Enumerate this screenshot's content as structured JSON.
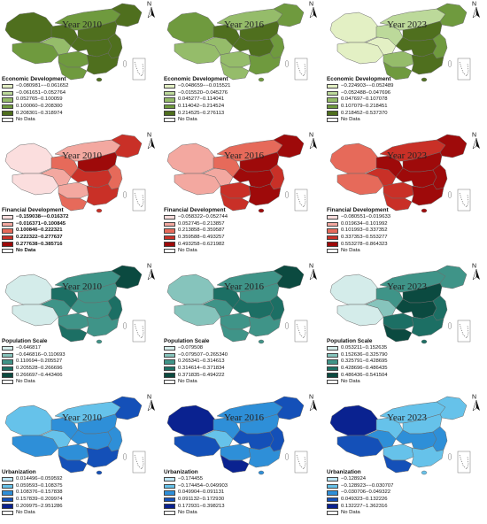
{
  "panels": [
    {
      "row": "Economic Development",
      "year_label": "Year 2010",
      "legend_title": "Economic Development",
      "classes": [
        {
          "label": "−0.080981−−0.061652",
          "color": "#e3f0c4"
        },
        {
          "label": "−0.061651−0.052764",
          "color": "#bcd99a"
        },
        {
          "label": "0.052765−0.100059",
          "color": "#95bc6a"
        },
        {
          "label": "0.100060−0.208300",
          "color": "#6f9a3e"
        },
        {
          "label": "0.208301−0.318974",
          "color": "#4f6f1e"
        }
      ],
      "nodata_label": "No Data",
      "region_classes": [
        4,
        3,
        2,
        4,
        3,
        4,
        3,
        4,
        4,
        4,
        3,
        4
      ]
    },
    {
      "row": "Economic Development",
      "year_label": "Year 2016",
      "legend_title": "Economic Development",
      "classes": [
        {
          "label": "−0.048659−−0.015521",
          "color": "#e3f0c4"
        },
        {
          "label": "−0.015520−0.045276",
          "color": "#bcd99a"
        },
        {
          "label": "0.045277−0.114041",
          "color": "#95bc6a"
        },
        {
          "label": "0.114042−0.214524",
          "color": "#6f9a3e"
        },
        {
          "label": "0.214525−0.276113",
          "color": "#4f6f1e"
        }
      ],
      "nodata_label": "No Data",
      "region_classes": [
        3,
        2,
        2,
        4,
        2,
        3,
        2,
        4,
        4,
        3,
        2,
        3
      ]
    },
    {
      "row": "Economic Development",
      "year_label": "Year 2023",
      "legend_title": "Economic Development",
      "classes": [
        {
          "label": "−0.224903−−0.052489",
          "color": "#e3f0c4"
        },
        {
          "label": "−0.052488−0.047696",
          "color": "#bcd99a"
        },
        {
          "label": "0.047697−0.107078",
          "color": "#95bc6a"
        },
        {
          "label": "0.107079−0.218451",
          "color": "#6f9a3e"
        },
        {
          "label": "0.218452−0.537370",
          "color": "#4f6f1e"
        }
      ],
      "nodata_label": "No Data",
      "region_classes": [
        0,
        0,
        0,
        1,
        1,
        3,
        2,
        4,
        4,
        3,
        3,
        4
      ]
    },
    {
      "row": "Financial Development",
      "year_label": "Year 2010",
      "legend_title": "Financial Development",
      "legend_bold": true,
      "classes": [
        {
          "label": "−0.159038−−0.016372",
          "color": "#fbdede"
        },
        {
          "label": "−0.016371−0.100845",
          "color": "#f3a8a0"
        },
        {
          "label": "0.100846−0.222321",
          "color": "#e66a5a"
        },
        {
          "label": "0.222322−0.277637",
          "color": "#c93027"
        },
        {
          "label": "0.277638−0.385716",
          "color": "#9e0a0a"
        }
      ],
      "nodata_label": "No Data",
      "region_classes": [
        0,
        0,
        1,
        2,
        1,
        3,
        1,
        4,
        3,
        2,
        2,
        3
      ]
    },
    {
      "row": "Financial Development",
      "year_label": "Year 2016",
      "legend_title": "Financial Development",
      "classes": [
        {
          "label": "−0.058322−0.052744",
          "color": "#fbdede"
        },
        {
          "label": "0.052745−0.213857",
          "color": "#f3a8a0"
        },
        {
          "label": "0.213858−0.359587",
          "color": "#e66a5a"
        },
        {
          "label": "0.359588−0.493257",
          "color": "#c93027"
        },
        {
          "label": "0.493258−0.621982",
          "color": "#9e0a0a"
        }
      ],
      "nodata_label": "No Data",
      "region_classes": [
        1,
        1,
        1,
        2,
        2,
        4,
        3,
        4,
        4,
        3,
        3,
        4
      ]
    },
    {
      "row": "Financial Development",
      "year_label": "Year 2023",
      "legend_title": "Financial Development",
      "classes": [
        {
          "label": "−0.080551−0.019633",
          "color": "#fbdede"
        },
        {
          "label": "0.019634−0.101992",
          "color": "#f3a8a0"
        },
        {
          "label": "0.101993−0.337352",
          "color": "#e66a5a"
        },
        {
          "label": "0.337353−0.553277",
          "color": "#c93027"
        },
        {
          "label": "0.553278−0.864323",
          "color": "#9e0a0a"
        }
      ],
      "nodata_label": "No Data",
      "region_classes": [
        2,
        2,
        3,
        4,
        3,
        4,
        3,
        4,
        4,
        4,
        3,
        4
      ]
    },
    {
      "row": "Population Scale",
      "year_label": "Year 2010",
      "legend_title": "Population Scale",
      "classes": [
        {
          "label": "−0.646817",
          "color": "#d4ecea"
        },
        {
          "label": "−0.646816−0.110693",
          "color": "#86c4bc"
        },
        {
          "label": "0.110694−0.205527",
          "color": "#3f9488"
        },
        {
          "label": "0.205528−0.266696",
          "color": "#1c6f64"
        },
        {
          "label": "0.266697−0.443406",
          "color": "#0b4a40"
        }
      ],
      "nodata_label": "No Data",
      "region_classes": [
        0,
        0,
        2,
        3,
        2,
        4,
        2,
        2,
        2,
        3,
        3,
        2
      ]
    },
    {
      "row": "Population Scale",
      "year_label": "Year 2016",
      "legend_title": "Population Scale",
      "classes": [
        {
          "label": "−0.079508",
          "color": "#d4ecea"
        },
        {
          "label": "−0.079507−0.265340",
          "color": "#86c4bc"
        },
        {
          "label": "0.265341−0.314613",
          "color": "#3f9488"
        },
        {
          "label": "0.314614−0.371834",
          "color": "#1c6f64"
        },
        {
          "label": "0.371835−0.494222",
          "color": "#0b4a40"
        }
      ],
      "nodata_label": "No Data",
      "region_classes": [
        1,
        1,
        2,
        3,
        2,
        4,
        2,
        2,
        3,
        3,
        2,
        2
      ]
    },
    {
      "row": "Population Scale",
      "year_label": "Year 2023",
      "legend_title": "Population Scale",
      "classes": [
        {
          "label": "0.053211−0.152635",
          "color": "#d4ecea"
        },
        {
          "label": "0.152636−0.325790",
          "color": "#86c4bc"
        },
        {
          "label": "0.325791−0.428695",
          "color": "#3f9488"
        },
        {
          "label": "0.428696−0.486435",
          "color": "#1c6f64"
        },
        {
          "label": "0.486436−0.541504",
          "color": "#0b4a40"
        }
      ],
      "nodata_label": "No Data",
      "region_classes": [
        0,
        0,
        1,
        2,
        2,
        2,
        3,
        4,
        4,
        3,
        4,
        3
      ]
    },
    {
      "row": "Urbanization",
      "year_label": "Year 2010",
      "legend_title": "Urbanization",
      "classes": [
        {
          "label": "0.014496−0.059592",
          "color": "#bfe8f7"
        },
        {
          "label": "0.059593−0.108375",
          "color": "#66c2ea"
        },
        {
          "label": "0.108376−0.157838",
          "color": "#2e8fd8"
        },
        {
          "label": "0.157839−0.209974",
          "color": "#1450b8"
        },
        {
          "label": "0.209975−2.951286",
          "color": "#0a2290"
        }
      ],
      "nodata_label": "No Data",
      "region_classes": [
        1,
        2,
        1,
        2,
        1,
        3,
        2,
        2,
        2,
        2,
        3,
        3
      ]
    },
    {
      "row": "Urbanization",
      "year_label": "Year 2016",
      "legend_title": "Urbanization",
      "classes": [
        {
          "label": "−0.174455",
          "color": "#bfe8f7"
        },
        {
          "label": "−0.174454−0.049903",
          "color": "#66c2ea"
        },
        {
          "label": "0.049904−0.091131",
          "color": "#2e8fd8"
        },
        {
          "label": "0.091132−0.172930",
          "color": "#1450b8"
        },
        {
          "label": "0.172931−0.398213",
          "color": "#0a2290"
        }
      ],
      "nodata_label": "No Data",
      "region_classes": [
        4,
        3,
        1,
        2,
        2,
        3,
        2,
        2,
        3,
        3,
        4,
        2
      ]
    },
    {
      "row": "Urbanization",
      "year_label": "Year 2023",
      "legend_title": "Urbanization",
      "classes": [
        {
          "label": "−0.128924",
          "color": "#bfe8f7"
        },
        {
          "label": "−0.128923−−0.030707",
          "color": "#66c2ea"
        },
        {
          "label": "−0.030706−0.049322",
          "color": "#2e8fd8"
        },
        {
          "label": "0.049323−0.132226",
          "color": "#1450b8"
        },
        {
          "label": "0.132227−1.362316",
          "color": "#0a2290"
        }
      ],
      "nodata_label": "No Data",
      "region_classes": [
        4,
        3,
        2,
        1,
        1,
        1,
        1,
        1,
        2,
        2,
        3,
        1
      ]
    }
  ],
  "north_label": "N",
  "nodata_color": "#ffffff"
}
